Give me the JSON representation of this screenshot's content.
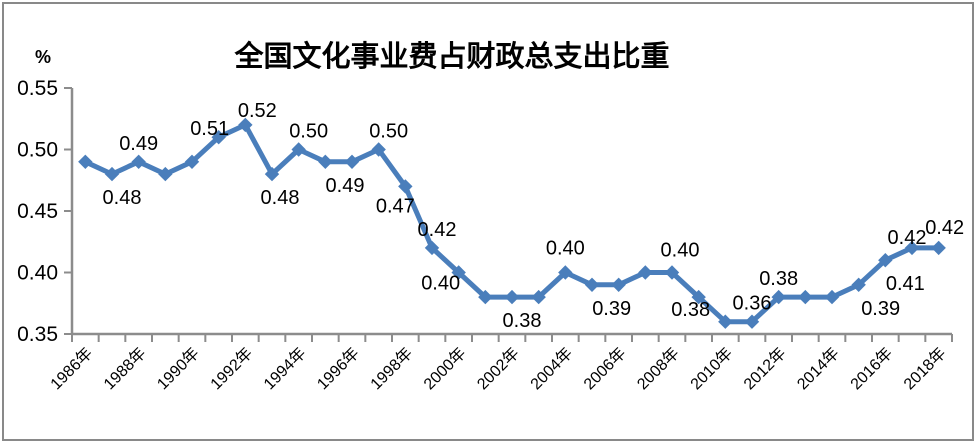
{
  "chart_data": {
    "type": "line",
    "title": "全国文化事业费占财政总支出比重",
    "y_axis_unit": "%",
    "xlabel": "",
    "ylabel": "%",
    "ylim": [
      0.35,
      0.55
    ],
    "y_ticks": [
      "0.55",
      "0.50",
      "0.45",
      "0.40",
      "0.35"
    ],
    "grid": "off",
    "legend": "none",
    "x_tick_label_every": 2,
    "label_decimals": 2,
    "line_color": "#4A7EBB",
    "axis_color": "#8C8C8C",
    "text_color": "#000000",
    "series": [
      {
        "name": "全国文化事业费占财政总支出比重",
        "points": [
          {
            "x": "1986年",
            "y": 0.49
          },
          {
            "x": "1987年",
            "y": 0.48,
            "label": {
              "pos": "below",
              "dx": 10,
              "dy": 0
            }
          },
          {
            "x": "1988年",
            "y": 0.49,
            "label": {
              "pos": "above",
              "dx": 0,
              "dy": 0
            }
          },
          {
            "x": "1989年",
            "y": 0.48
          },
          {
            "x": "1990年",
            "y": 0.49
          },
          {
            "x": "1991年",
            "y": 0.51,
            "label": {
              "pos": "above",
              "dx": -9,
              "dy": 10
            }
          },
          {
            "x": "1992年",
            "y": 0.52,
            "label": {
              "pos": "above",
              "dx": 12,
              "dy": 4
            }
          },
          {
            "x": "1993年",
            "y": 0.48,
            "label": {
              "pos": "below",
              "dx": 8,
              "dy": 0
            }
          },
          {
            "x": "1994年",
            "y": 0.5,
            "label": {
              "pos": "above",
              "dx": 10,
              "dy": 0
            }
          },
          {
            "x": "1995年",
            "y": 0.49
          },
          {
            "x": "1996年",
            "y": 0.49,
            "label": {
              "pos": "below",
              "dx": -7,
              "dy": 0
            }
          },
          {
            "x": "1997年",
            "y": 0.5,
            "label": {
              "pos": "above",
              "dx": 10,
              "dy": 0
            }
          },
          {
            "x": "1998年",
            "y": 0.47,
            "label": {
              "pos": "below",
              "dx": -10,
              "dy": -4
            }
          },
          {
            "x": "1999年",
            "y": 0.42,
            "label": {
              "pos": "above",
              "dx": 5,
              "dy": 0
            }
          },
          {
            "x": "2000年",
            "y": 0.4,
            "label": {
              "pos": "below",
              "dx": -18,
              "dy": -13
            }
          },
          {
            "x": "2001年",
            "y": 0.38
          },
          {
            "x": "2002年",
            "y": 0.38,
            "label": {
              "pos": "below",
              "dx": 10,
              "dy": 0
            }
          },
          {
            "x": "2003年",
            "y": 0.38
          },
          {
            "x": "2004年",
            "y": 0.4,
            "label": {
              "pos": "above",
              "dx": 0,
              "dy": -6
            }
          },
          {
            "x": "2005年",
            "y": 0.39
          },
          {
            "x": "2006年",
            "y": 0.39,
            "label": {
              "pos": "below",
              "dx": -7,
              "dy": 0
            }
          },
          {
            "x": "2007年",
            "y": 0.4
          },
          {
            "x": "2008年",
            "y": 0.4,
            "label": {
              "pos": "above",
              "dx": 8,
              "dy": -4
            }
          },
          {
            "x": "2009年",
            "y": 0.38,
            "label": {
              "pos": "below",
              "dx": -8,
              "dy": -11
            }
          },
          {
            "x": "2010年",
            "y": 0.36
          },
          {
            "x": "2011年",
            "y": 0.36,
            "label": {
              "pos": "above",
              "dx": 0,
              "dy": 0
            }
          },
          {
            "x": "2012年",
            "y": 0.38,
            "label": {
              "pos": "above",
              "dx": 0,
              "dy": 0
            }
          },
          {
            "x": "2013年",
            "y": 0.38
          },
          {
            "x": "2014年",
            "y": 0.38
          },
          {
            "x": "2015年",
            "y": 0.39,
            "label": {
              "pos": "below",
              "dx": 22,
              "dy": 0
            }
          },
          {
            "x": "2016年",
            "y": 0.41,
            "label": {
              "pos": "below",
              "dx": 20,
              "dy": 0
            }
          },
          {
            "x": "2017年",
            "y": 0.42,
            "label": {
              "pos": "above",
              "dx": -5,
              "dy": 8
            }
          },
          {
            "x": "2018年",
            "y": 0.42,
            "label": {
              "pos": "above",
              "dx": 6,
              "dy": -2
            }
          }
        ]
      }
    ]
  }
}
